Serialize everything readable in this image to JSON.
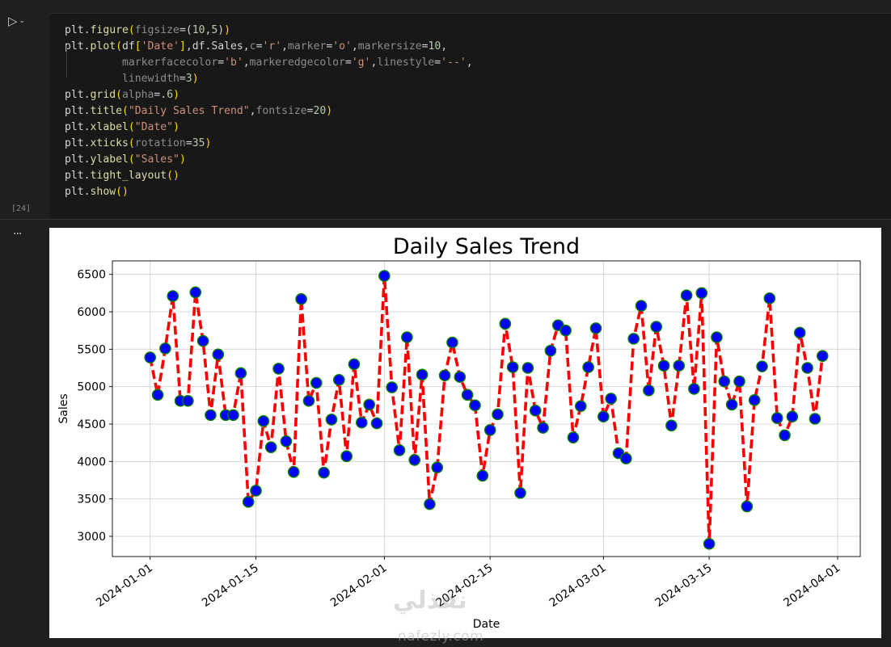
{
  "cell": {
    "execution_count": "[24]",
    "output_marker": "...",
    "code_lines": [
      [
        [
          "tk-o",
          "plt."
        ],
        [
          "tk-f",
          "figure"
        ],
        [
          "tk-p",
          "("
        ],
        [
          "tk-g",
          "figsize"
        ],
        [
          "tk-o",
          "=("
        ],
        [
          "tk-n",
          "10"
        ],
        [
          "tk-o",
          ","
        ],
        [
          "tk-n",
          "5"
        ],
        [
          "tk-o",
          ")"
        ],
        [
          "tk-p",
          ")"
        ]
      ],
      [
        [
          "tk-o",
          "plt."
        ],
        [
          "tk-f",
          "plot"
        ],
        [
          "tk-p",
          "("
        ],
        [
          "tk-o",
          "df"
        ],
        [
          "tk-p",
          "["
        ],
        [
          "tk-s",
          "'Date'"
        ],
        [
          "tk-p",
          "]"
        ],
        [
          "tk-o",
          ",df.Sales,"
        ],
        [
          "tk-g",
          "c"
        ],
        [
          "tk-o",
          "="
        ],
        [
          "tk-s",
          "'r'"
        ],
        [
          "tk-o",
          ","
        ],
        [
          "tk-g",
          "marker"
        ],
        [
          "tk-o",
          "="
        ],
        [
          "tk-s",
          "'o'"
        ],
        [
          "tk-o",
          ","
        ],
        [
          "tk-g",
          "markersize"
        ],
        [
          "tk-o",
          "="
        ],
        [
          "tk-n",
          "10"
        ],
        [
          "tk-o",
          ","
        ]
      ],
      [
        [
          "tk-o",
          "         "
        ],
        [
          "tk-g",
          "markerfacecolor"
        ],
        [
          "tk-o",
          "="
        ],
        [
          "tk-s",
          "'b'"
        ],
        [
          "tk-o",
          ","
        ],
        [
          "tk-g",
          "markeredgecolor"
        ],
        [
          "tk-o",
          "="
        ],
        [
          "tk-s",
          "'g'"
        ],
        [
          "tk-o",
          ","
        ],
        [
          "tk-g",
          "linestyle"
        ],
        [
          "tk-o",
          "="
        ],
        [
          "tk-s",
          "'--'"
        ],
        [
          "tk-o",
          ","
        ]
      ],
      [
        [
          "tk-o",
          "         "
        ],
        [
          "tk-g",
          "linewidth"
        ],
        [
          "tk-o",
          "="
        ],
        [
          "tk-n",
          "3"
        ],
        [
          "tk-p",
          ")"
        ]
      ],
      [
        [
          "tk-o",
          "plt."
        ],
        [
          "tk-f",
          "grid"
        ],
        [
          "tk-p",
          "("
        ],
        [
          "tk-g",
          "alpha"
        ],
        [
          "tk-o",
          "=."
        ],
        [
          "tk-n",
          "6"
        ],
        [
          "tk-p",
          ")"
        ]
      ],
      [
        [
          "tk-o",
          "plt."
        ],
        [
          "tk-f",
          "title"
        ],
        [
          "tk-p",
          "("
        ],
        [
          "tk-s",
          "\"Daily Sales Trend\""
        ],
        [
          "tk-o",
          ","
        ],
        [
          "tk-g",
          "fontsize"
        ],
        [
          "tk-o",
          "="
        ],
        [
          "tk-n",
          "20"
        ],
        [
          "tk-p",
          ")"
        ]
      ],
      [
        [
          "tk-o",
          "plt."
        ],
        [
          "tk-f",
          "xlabel"
        ],
        [
          "tk-p",
          "("
        ],
        [
          "tk-s",
          "\"Date\""
        ],
        [
          "tk-p",
          ")"
        ]
      ],
      [
        [
          "tk-o",
          "plt."
        ],
        [
          "tk-f",
          "xticks"
        ],
        [
          "tk-p",
          "("
        ],
        [
          "tk-g",
          "rotation"
        ],
        [
          "tk-o",
          "="
        ],
        [
          "tk-n",
          "35"
        ],
        [
          "tk-p",
          ")"
        ]
      ],
      [
        [
          "tk-o",
          "plt."
        ],
        [
          "tk-f",
          "ylabel"
        ],
        [
          "tk-p",
          "("
        ],
        [
          "tk-s",
          "\"Sales\""
        ],
        [
          "tk-p",
          ")"
        ]
      ],
      [
        [
          "tk-o",
          "plt."
        ],
        [
          "tk-f",
          "tight_layout"
        ],
        [
          "tk-p",
          "()"
        ]
      ],
      [
        [
          "tk-o",
          "plt."
        ],
        [
          "tk-f",
          "show"
        ],
        [
          "tk-p",
          "()"
        ]
      ]
    ]
  },
  "watermark": {
    "latin": "nafezly.com",
    "arabic": "نفذلي"
  },
  "chart_data": {
    "type": "line",
    "title": "Daily Sales Trend",
    "xlabel": "Date",
    "ylabel": "Sales",
    "xlim": [
      "2023-12-27",
      "2024-04-04"
    ],
    "ylim": [
      2730,
      6680
    ],
    "xticks": [
      "2024-01-01",
      "2024-01-15",
      "2024-02-01",
      "2024-02-15",
      "2024-03-01",
      "2024-03-15",
      "2024-04-01"
    ],
    "yticks": [
      3000,
      3500,
      4000,
      4500,
      5000,
      5500,
      6000,
      6500
    ],
    "grid": true,
    "line_color": "#ff0000",
    "marker_face": "#0000ff",
    "marker_edge": "#008000",
    "series": [
      {
        "start_date": "2024-01-01",
        "x": [
          "2024-01-01",
          "2024-01-02",
          "2024-01-03",
          "2024-01-04",
          "2024-01-05",
          "2024-01-06",
          "2024-01-07",
          "2024-01-08",
          "2024-01-09",
          "2024-01-10",
          "2024-01-11",
          "2024-01-12",
          "2024-01-13",
          "2024-01-14",
          "2024-01-15",
          "2024-01-16",
          "2024-01-17",
          "2024-01-18",
          "2024-01-19",
          "2024-01-20",
          "2024-01-21",
          "2024-01-22",
          "2024-01-23",
          "2024-01-24",
          "2024-01-25",
          "2024-01-26",
          "2024-01-27",
          "2024-01-28",
          "2024-01-29",
          "2024-01-30",
          "2024-01-31",
          "2024-02-01",
          "2024-02-02",
          "2024-02-03",
          "2024-02-04",
          "2024-02-05",
          "2024-02-06",
          "2024-02-07",
          "2024-02-08",
          "2024-02-09",
          "2024-02-10",
          "2024-02-11",
          "2024-02-12",
          "2024-02-13",
          "2024-02-14",
          "2024-02-15",
          "2024-02-16",
          "2024-02-17",
          "2024-02-18",
          "2024-02-19",
          "2024-02-20",
          "2024-02-21",
          "2024-02-22",
          "2024-02-23",
          "2024-02-24",
          "2024-02-25",
          "2024-02-26",
          "2024-02-27",
          "2024-02-28",
          "2024-02-29",
          "2024-03-01",
          "2024-03-02",
          "2024-03-03",
          "2024-03-04",
          "2024-03-05",
          "2024-03-06",
          "2024-03-07",
          "2024-03-08",
          "2024-03-09",
          "2024-03-10",
          "2024-03-11",
          "2024-03-12",
          "2024-03-13",
          "2024-03-14",
          "2024-03-15",
          "2024-03-16",
          "2024-03-17",
          "2024-03-18",
          "2024-03-19",
          "2024-03-20",
          "2024-03-21",
          "2024-03-22",
          "2024-03-23",
          "2024-03-24",
          "2024-03-25",
          "2024-03-26",
          "2024-03-27",
          "2024-03-28",
          "2024-03-29",
          "2024-03-30"
        ],
        "y": [
          5390,
          4890,
          5510,
          6210,
          4810,
          4810,
          6260,
          5610,
          4620,
          5430,
          4620,
          4620,
          5180,
          3460,
          3610,
          4540,
          4190,
          5240,
          4270,
          3860,
          6170,
          4810,
          5050,
          3850,
          4560,
          5090,
          4070,
          5300,
          4520,
          4760,
          4510,
          6480,
          4990,
          4150,
          5660,
          4020,
          5160,
          3430,
          3920,
          5150,
          5590,
          5130,
          4890,
          4750,
          3810,
          4420,
          4630,
          5840,
          5260,
          3580,
          5250,
          4680,
          4450,
          5480,
          5820,
          5750,
          4320,
          4740,
          5260,
          5780,
          4600,
          4840,
          4110,
          4040,
          5640,
          6080,
          4950,
          5800,
          5280,
          4480,
          5280,
          6220,
          4970,
          6250,
          2900,
          5660,
          5070,
          4760,
          5070,
          3400,
          4820,
          5270,
          6180,
          4580,
          4350,
          4600,
          5720,
          5250,
          4570,
          5410
        ]
      }
    ]
  }
}
